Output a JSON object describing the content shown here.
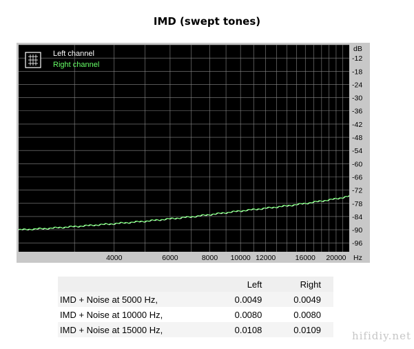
{
  "title": "IMD (swept tones)",
  "chart_data": {
    "type": "line",
    "x_scale": "log",
    "xlim": [
      2000,
      22000
    ],
    "ylim": [
      -100,
      -6
    ],
    "x_unit": "Hz",
    "y_unit": "dB",
    "x_ticks": [
      4000,
      6000,
      8000,
      10000,
      12000,
      16000,
      20000
    ],
    "y_ticks": [
      -12,
      -18,
      -24,
      -30,
      -36,
      -42,
      -48,
      -54,
      -60,
      -66,
      -72,
      -78,
      -84,
      -90,
      -96
    ],
    "grid": true,
    "legend_position": "top-left",
    "series": [
      {
        "name": "Left channel",
        "color": "#ffffff",
        "x": [
          2000,
          2500,
          3000,
          4000,
          5000,
          6000,
          7000,
          8000,
          9000,
          10000,
          12000,
          14000,
          16000,
          18000,
          20000,
          22000
        ],
        "y": [
          -90.1,
          -89.4,
          -88.6,
          -87.3,
          -86.2,
          -85.1,
          -84.2,
          -83.2,
          -82.3,
          -81.5,
          -80.3,
          -79.2,
          -78.1,
          -77.0,
          -76.0,
          -74.8
        ]
      },
      {
        "name": "Right channel",
        "color": "#66ff66",
        "x": [
          2000,
          2500,
          3000,
          4000,
          5000,
          6000,
          7000,
          8000,
          9000,
          10000,
          12000,
          14000,
          16000,
          18000,
          20000,
          22000
        ],
        "y": [
          -90.0,
          -89.3,
          -88.5,
          -87.2,
          -86.1,
          -85.0,
          -84.1,
          -83.1,
          -82.2,
          -81.4,
          -80.2,
          -79.1,
          -78.0,
          -76.9,
          -75.9,
          -74.7
        ]
      }
    ]
  },
  "table": {
    "headers": [
      "",
      "Left",
      "Right"
    ],
    "rows": [
      [
        "IMD + Noise at 5000 Hz,",
        "0.0049",
        "0.0049"
      ],
      [
        "IMD + Noise at 10000 Hz,",
        "0.0080",
        "0.0080"
      ],
      [
        "IMD + Noise at 15000 Hz,",
        "0.0108",
        "0.0109"
      ]
    ]
  },
  "watermark": "hifidiy.net"
}
